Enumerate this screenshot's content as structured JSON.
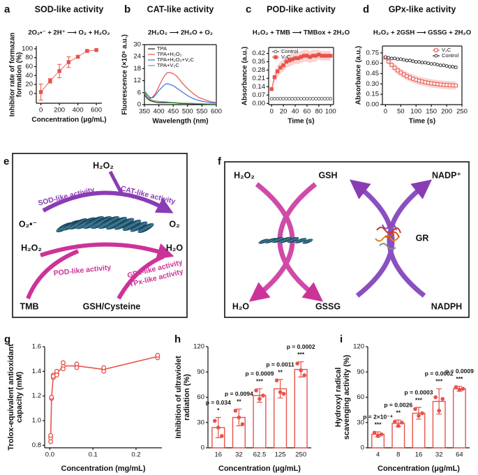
{
  "chart_data": [
    {
      "type": "line",
      "panel": "a",
      "title": "SOD-like activity",
      "reaction": "2O₂•⁻ + 2H⁺ ⟶ O₂ + H₂O₂",
      "xlabel": "Concentration (μg/mL)",
      "ylabel": [
        "Inhibitor rate of formazan",
        "formation (%)"
      ],
      "x": [
        0,
        100,
        200,
        300,
        400,
        500,
        600
      ],
      "xlim": [
        -50,
        660
      ],
      "xticks": [
        0,
        200,
        400,
        600
      ],
      "ylim": [
        -22,
        106
      ],
      "yticks": [
        0,
        20,
        40,
        60,
        80,
        100
      ],
      "error_style": "bar",
      "series": [
        {
          "color": "#e8524a",
          "marker": "square",
          "values": [
            3,
            28,
            50,
            70,
            82,
            95,
            97
          ],
          "errors": [
            18,
            5,
            15,
            12,
            3,
            2,
            1
          ]
        }
      ]
    },
    {
      "type": "line",
      "panel": "b",
      "title": "CAT-like activity",
      "reaction": "2H₂O₂ ⟶ 2H₂O + O₂",
      "xlabel": "Wavelength (nm)",
      "ylabel": "Fluorescence (×10⁶ a.u.)",
      "x": [
        350,
        360,
        370,
        380,
        390,
        400,
        410,
        420,
        430,
        440,
        450,
        460,
        470,
        480,
        500,
        520,
        540,
        560,
        580,
        600
      ],
      "xlim": [
        350,
        600
      ],
      "xticks": [
        350,
        400,
        450,
        500,
        550,
        600
      ],
      "ylim": [
        0,
        30
      ],
      "yticks": [
        0,
        6,
        12,
        18,
        24,
        30
      ],
      "legend": "upper left",
      "series": [
        {
          "name": "TPA",
          "color": "#222222",
          "values": [
            5,
            3,
            2,
            1.5,
            1.2,
            1,
            1,
            1,
            1,
            1,
            0.9,
            0.8,
            0.7,
            0.6,
            0.5,
            0.4,
            0.3,
            0.3,
            0.2,
            0.2
          ]
        },
        {
          "name": "TPA+H₂O₂",
          "color": "#e8524a",
          "values": [
            6,
            4,
            3,
            4,
            6,
            9,
            12,
            14.5,
            16,
            16,
            15.5,
            14.5,
            13,
            11,
            8,
            5.5,
            3.5,
            2.5,
            1.5,
            1
          ]
        },
        {
          "name": "TPA+H₂O₂+V₂C",
          "color": "#3a6fd8",
          "values": [
            7,
            5,
            3.5,
            3.5,
            5,
            7,
            8.5,
            10,
            10.5,
            10,
            9.5,
            8.5,
            7.5,
            6.5,
            4.5,
            3,
            2,
            1.5,
            1,
            0.8
          ]
        },
        {
          "name": "TPA+V₂C",
          "color": "#4caf50",
          "values": [
            7,
            4,
            2.5,
            2,
            1.8,
            1.6,
            1.5,
            1.4,
            1.3,
            1.2,
            1.1,
            1,
            0.9,
            0.8,
            0.7,
            0.6,
            0.5,
            0.4,
            0.3,
            0.3
          ]
        }
      ]
    },
    {
      "type": "line",
      "panel": "c",
      "title": "POD-like activity",
      "reaction": "H₂O₂ + TMB ⟶ TMBox + 2H₂O",
      "xlabel": "Time (s)",
      "ylabel": "Absorbance (a.u.)",
      "x": [
        0,
        5,
        10,
        15,
        20,
        25,
        30,
        35,
        40,
        45,
        50,
        55,
        60,
        65,
        70,
        75,
        80,
        85,
        90,
        95,
        100
      ],
      "xlim": [
        -5,
        105
      ],
      "xticks": [
        0,
        20,
        40,
        60,
        80,
        100
      ],
      "ylim": [
        -0.01,
        0.47
      ],
      "yticks": [
        {
          "value": 0,
          "label": "0.00"
        },
        0.07,
        0.14,
        0.21,
        0.28,
        0.35,
        0.42
      ],
      "error_style": "band",
      "legend": "upper left",
      "series": [
        {
          "name": "Control",
          "color": "#555555",
          "marker": "open-circle",
          "values": [
            0.04,
            0.04,
            0.04,
            0.04,
            0.04,
            0.04,
            0.04,
            0.04,
            0.04,
            0.04,
            0.04,
            0.04,
            0.04,
            0.04,
            0.04,
            0.04,
            0.04,
            0.04,
            0.04,
            0.04,
            0.04
          ]
        },
        {
          "name": "V₂C",
          "color": "#e8524a",
          "marker": "square",
          "values": [
            0.12,
            0.22,
            0.27,
            0.3,
            0.32,
            0.35,
            0.36,
            0.37,
            0.38,
            0.38,
            0.39,
            0.4,
            0.4,
            0.39,
            0.4,
            0.4,
            0.41,
            0.4,
            0.4,
            0.4,
            0.4
          ],
          "errors": [
            0.02,
            0.04,
            0.05,
            0.05,
            0.05,
            0.05,
            0.05,
            0.05,
            0.05,
            0.05,
            0.05,
            0.05,
            0.05,
            0.05,
            0.05,
            0.05,
            0.04,
            0.04,
            0.04,
            0.04,
            0.04
          ]
        }
      ]
    },
    {
      "type": "line",
      "panel": "d",
      "title": "GPx-like activity",
      "reaction": "H₂O₂ + 2GSH ⟶ GSSG + 2H₂O",
      "xlabel": "Time (s)",
      "ylabel": "Absorbance (a.u.)",
      "x": [
        0,
        10,
        20,
        30,
        40,
        50,
        60,
        70,
        80,
        90,
        100,
        110,
        120,
        130,
        140,
        150,
        160,
        170,
        180,
        190,
        200,
        210,
        220,
        230
      ],
      "xlim": [
        -10,
        250
      ],
      "xticks": [
        0,
        50,
        100,
        150,
        200,
        250
      ],
      "ylim": [
        0,
        0.85
      ],
      "yticks": [
        {
          "value": 0,
          "label": "0.00"
        },
        0.15,
        {
          "value": 0.3,
          "label": "0.30"
        },
        0.45,
        {
          "value": 0.6,
          "label": "0.60"
        },
        0.75
      ],
      "error_style": "band",
      "legend": "upper right",
      "series": [
        {
          "name": "V₂C",
          "color": "#e8524a",
          "marker": "open-square",
          "values": [
            0.68,
            0.624,
            0.576,
            0.534,
            0.497,
            0.466,
            0.438,
            0.414,
            0.394,
            0.375,
            0.36,
            0.347,
            0.335,
            0.325,
            0.317,
            0.309,
            0.303,
            0.297,
            0.292,
            0.288,
            0.285,
            0.281,
            0.279,
            0.277
          ],
          "errors": [
            0.02,
            0.04,
            0.05,
            0.06,
            0.06,
            0.06,
            0.06,
            0.06,
            0.06,
            0.06,
            0.06,
            0.06,
            0.06,
            0.06,
            0.06,
            0.06,
            0.06,
            0.06,
            0.06,
            0.06,
            0.06,
            0.06,
            0.06,
            0.06
          ]
        },
        {
          "name": "Control",
          "color": "#222222",
          "marker": "open-circle",
          "values": [
            0.69,
            0.68,
            0.67,
            0.67,
            0.66,
            0.66,
            0.65,
            0.64,
            0.64,
            0.63,
            0.62,
            0.62,
            0.61,
            0.61,
            0.6,
            0.59,
            0.59,
            0.58,
            0.57,
            0.57,
            0.56,
            0.55,
            0.55,
            0.54
          ]
        }
      ]
    },
    {
      "type": "scatter",
      "panel": "g",
      "xlabel": "Concentration (mg/mL)",
      "ylabel": [
        "Trolox-equivalent antioxidant",
        "capacity (mM)"
      ],
      "x": [
        0.002,
        0.004,
        0.008,
        0.016,
        0.031,
        0.0625,
        0.125,
        0.25
      ],
      "replicates": [
        [
          0.83,
          0.86,
          0.88
        ],
        [
          1.18,
          1.19
        ],
        [
          1.35,
          1.37,
          1.36
        ],
        [
          1.38,
          1.4,
          1.37
        ],
        [
          1.44,
          1.47,
          1.42
        ],
        [
          1.43,
          1.46
        ],
        [
          1.4,
          1.43
        ],
        [
          1.51,
          1.53
        ]
      ],
      "values": [
        0.86,
        1.185,
        1.36,
        1.38,
        1.443,
        1.445,
        1.415,
        1.52
      ],
      "color": "#e8524a",
      "xlim": [
        -0.012,
        0.26
      ],
      "xticks": [
        {
          "value": 0,
          "label": "0.0"
        },
        0.1,
        0.2
      ],
      "ylim": [
        0.78,
        1.6
      ],
      "yticks": [
        0.8,
        {
          "value": 1,
          "label": "1.0"
        },
        1.2,
        1.4,
        1.6
      ]
    },
    {
      "type": "bar",
      "panel": "h",
      "xlabel": "Concentration (μg/mL)",
      "ylabel": [
        "Inhibition of ultraviolet",
        "radiation (%)"
      ],
      "categories": [
        "16",
        "32",
        "62.5",
        "125",
        "250"
      ],
      "values": [
        24,
        36,
        62,
        70,
        93
      ],
      "errors": [
        12,
        10,
        8,
        11,
        9
      ],
      "points": [
        [
          32,
          24,
          14
        ],
        [
          44,
          36,
          28
        ],
        [
          68,
          58,
          62
        ],
        [
          80,
          66,
          64
        ],
        [
          100,
          92,
          86
        ]
      ],
      "p_labels": [
        "p = 0.034",
        "p = 0.0094",
        "p = 0.0009",
        "p = 0.0011",
        "p = 0.0002"
      ],
      "stars": [
        "*",
        "**",
        "***",
        "**",
        "***"
      ],
      "color": "#e8524a",
      "ylim": [
        0,
        120
      ],
      "yticks": [
        0,
        30,
        60,
        90,
        120
      ]
    },
    {
      "type": "bar",
      "panel": "i",
      "xlabel": "Concentration (μg/mL)",
      "ylabel": [
        "Hydroxyl radical",
        "scavenging activity (%)"
      ],
      "categories": [
        "4",
        "8",
        "16",
        "32",
        "64"
      ],
      "values": [
        16,
        29,
        41,
        55,
        70
      ],
      "errors": [
        3,
        4,
        7,
        15,
        3
      ],
      "points": [
        [
          18,
          14,
          16
        ],
        [
          31,
          26,
          30
        ],
        [
          46,
          38,
          41
        ],
        [
          60,
          44,
          58
        ],
        [
          72,
          69,
          70
        ]
      ],
      "p_labels": [
        "p = 2×10⁻⁴",
        "p = 0.0026",
        "p = 0.0003",
        "p = 0.0002",
        "p = 0.0009"
      ],
      "stars": [
        "***",
        "**",
        "***",
        "***",
        "***"
      ],
      "color": "#e8524a",
      "ylim": [
        0,
        120
      ],
      "yticks": [
        0,
        30,
        60,
        90,
        120
      ]
    }
  ],
  "diagrams": [
    {
      "panel": "e",
      "texts": [
        "H₂O₂",
        "SOD-like activity",
        "CAT-like activity",
        "O₂•⁻",
        "O₂",
        "H₂O₂",
        "H₂O",
        "POD-like activity",
        "GPx-like activity",
        "TPx-like activity",
        "TMB",
        "GSH/Cysteine"
      ]
    },
    {
      "panel": "f",
      "texts": [
        "H₂O₂",
        "GSH",
        "NADP⁺",
        "GR",
        "H₂O",
        "GSSG",
        "NADPH"
      ]
    }
  ]
}
